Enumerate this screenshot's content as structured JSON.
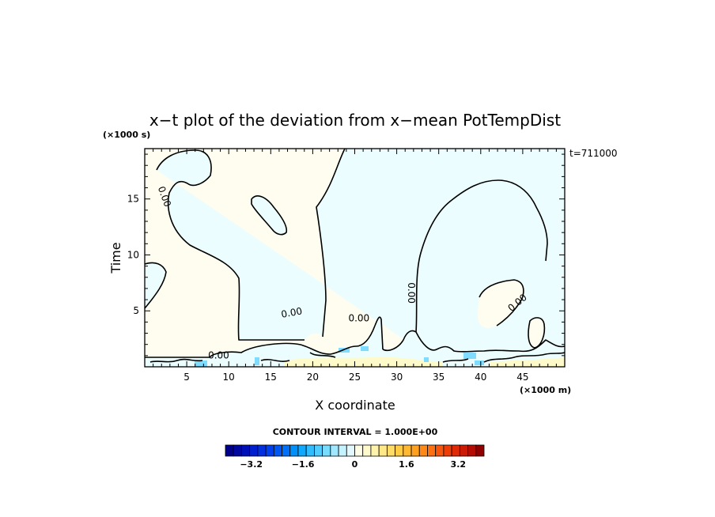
{
  "chart_data": {
    "type": "heatmap",
    "title": "x−t plot of the deviation from x−mean PotTempDist",
    "xlabel": "X coordinate",
    "ylabel": "Time",
    "x_unit": "(×1000 m)",
    "y_unit": "(×1000 s)",
    "time_annotation": "t=711000",
    "contour_interval_label": "CONTOUR INTERVAL = 1.000E+00",
    "xlim": [
      0,
      50
    ],
    "ylim": [
      0,
      19.5
    ],
    "xticks": [
      5,
      10,
      15,
      20,
      25,
      30,
      35,
      40,
      45
    ],
    "yticks": [
      5,
      10,
      15
    ],
    "contour_labels": [
      "0.00",
      "0.00",
      "0.00",
      "0.00",
      "0.00",
      "0.00"
    ],
    "colorbar": {
      "min": -4,
      "max": 4,
      "ticks": [
        "−3.2",
        "−1.6",
        "0",
        "1.6",
        "3.2"
      ],
      "tick_values": [
        -3.2,
        -1.6,
        0,
        1.6,
        3.2
      ],
      "colors": [
        "#00008b",
        "#0008a0",
        "#0010b8",
        "#0020d0",
        "#0030e0",
        "#0040ee",
        "#0058f4",
        "#0070f8",
        "#0090fa",
        "#10a8fc",
        "#30bcfd",
        "#50ccfe",
        "#78dcfe",
        "#a0e8ff",
        "#c4f2ff",
        "#e2faff",
        "#fffde6",
        "#fff9cc",
        "#fff2aa",
        "#ffe888",
        "#ffdc66",
        "#ffcc44",
        "#ffb830",
        "#ffa020",
        "#ff8816",
        "#ff7010",
        "#f8560c",
        "#ee3e08",
        "#e02a06",
        "#cc1a04",
        "#b40c02",
        "#900000"
      ]
    },
    "regions": {
      "positive_color": "#fffdf0",
      "negative_color": "#ebfdfe"
    }
  }
}
